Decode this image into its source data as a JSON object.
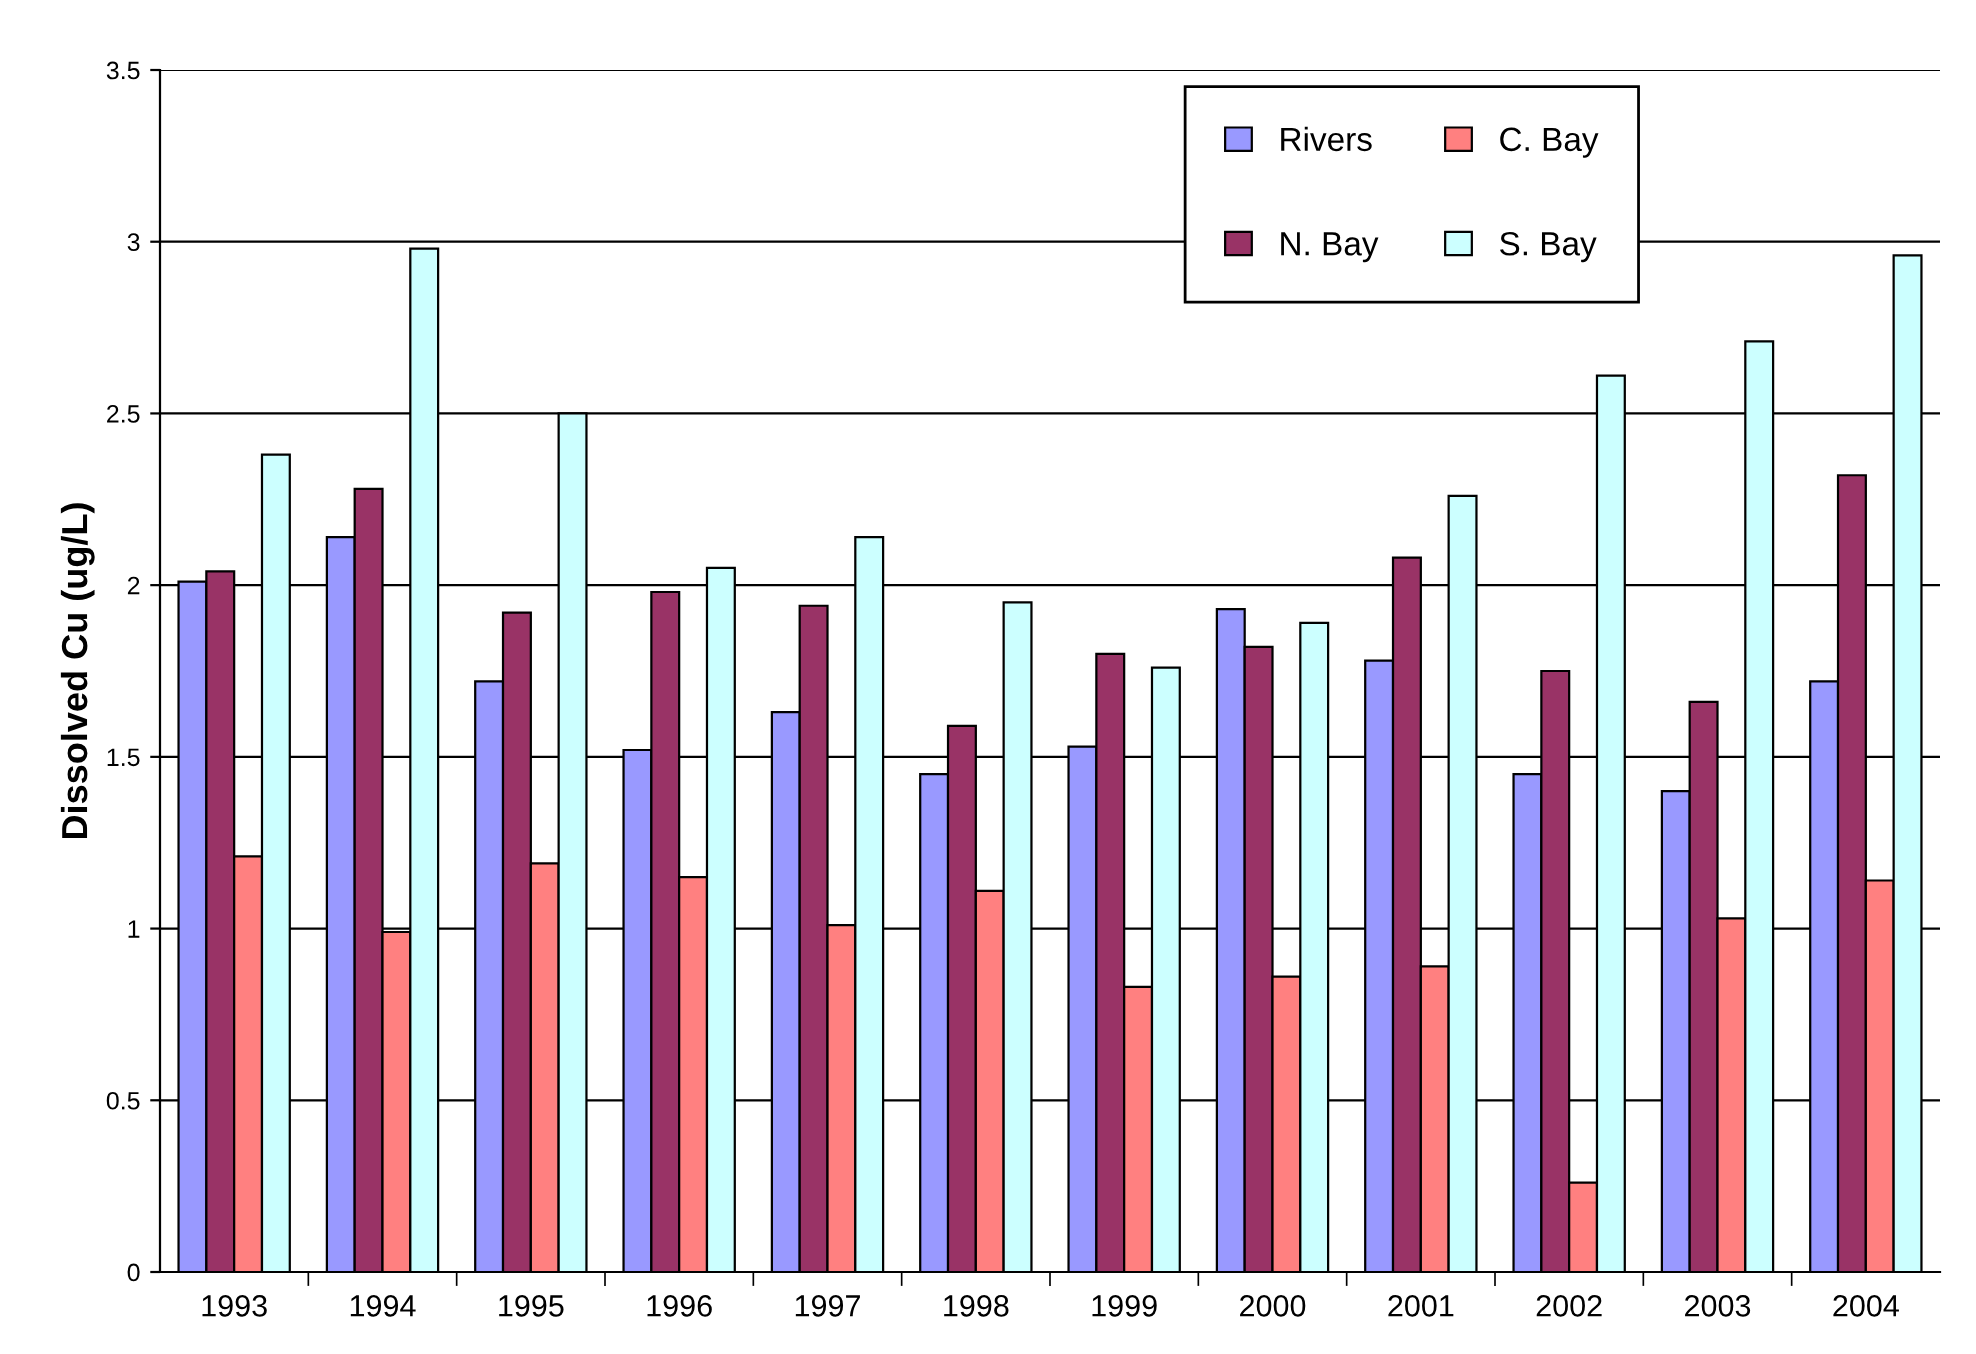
{
  "chart_data": {
    "type": "bar",
    "ylabel": "Dissolved Cu (ug/L)",
    "categories": [
      "1993",
      "1994",
      "1995",
      "1996",
      "1997",
      "1998",
      "1999",
      "2000",
      "2001",
      "2002",
      "2003",
      "2004"
    ],
    "series": [
      {
        "name": "Rivers",
        "color": "#9999ff",
        "values": [
          2.01,
          2.14,
          1.72,
          1.52,
          1.63,
          1.45,
          1.53,
          1.93,
          1.78,
          1.45,
          1.4,
          1.72
        ]
      },
      {
        "name": "N. Bay",
        "color": "#993366",
        "values": [
          2.04,
          2.28,
          1.92,
          1.98,
          1.94,
          1.59,
          1.8,
          1.82,
          2.08,
          1.75,
          1.66,
          2.32
        ]
      },
      {
        "name": "C. Bay",
        "color": "#ff8080",
        "values": [
          1.21,
          0.99,
          1.19,
          1.15,
          1.01,
          1.11,
          0.83,
          0.86,
          0.89,
          0.26,
          1.03,
          1.14
        ]
      },
      {
        "name": "S. Bay",
        "color": "#ccffff",
        "values": [
          2.38,
          2.98,
          2.5,
          2.05,
          2.14,
          1.95,
          1.76,
          1.89,
          2.26,
          2.61,
          2.71,
          2.96
        ]
      }
    ],
    "ylim": [
      0,
      3.5
    ],
    "yticks": [
      0,
      0.5,
      1,
      1.5,
      2,
      2.5,
      3,
      3.5
    ],
    "grid": "y",
    "legend": "top right"
  }
}
